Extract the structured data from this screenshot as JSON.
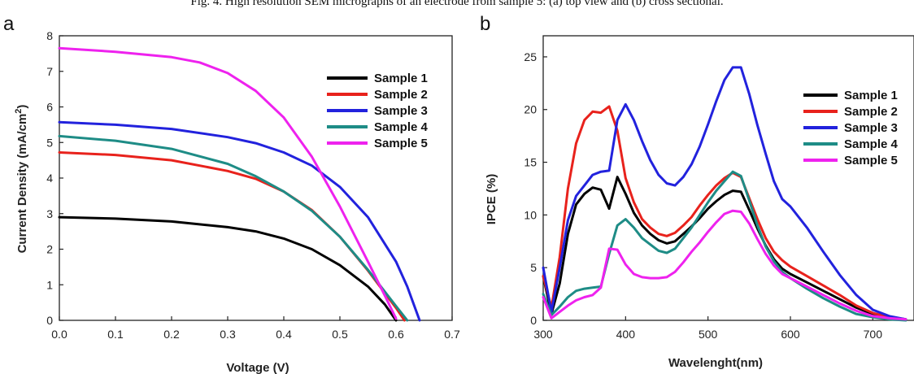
{
  "figure": {
    "caption": "Fig. 4. High resolution SEM micrographs of an electrode from sample 5: (a) top view and (b) cross sectional.",
    "colors": {
      "sample1": "#000000",
      "sample2": "#e8221c",
      "sample3": "#2222dd",
      "sample4": "#1e8c86",
      "sample5": "#ee22ee"
    }
  },
  "chart_data": [
    {
      "panel": "a",
      "type": "line",
      "title": "",
      "xlabel": "Voltage (V)",
      "ylabel": "Current Density (mA/cm²)",
      "ylabel_main": "Current Density (mA/cm",
      "ylabel_sup": "2",
      "ylabel_tail": ")",
      "xlim": [
        0,
        0.7
      ],
      "ylim": [
        0,
        8
      ],
      "xticks": [
        "0.0",
        "0.1",
        "0.2",
        "0.3",
        "0.4",
        "0.5",
        "0.6",
        "0.7"
      ],
      "yticks": [
        "0",
        "1",
        "2",
        "3",
        "4",
        "5",
        "6",
        "7",
        "8"
      ],
      "legend_position": "top-right",
      "grid": false,
      "series": [
        {
          "name": "Sample 1",
          "color": "#000000",
          "x": [
            0,
            0.1,
            0.2,
            0.3,
            0.35,
            0.4,
            0.45,
            0.5,
            0.55,
            0.58,
            0.6
          ],
          "y": [
            2.9,
            2.86,
            2.78,
            2.62,
            2.5,
            2.3,
            2.0,
            1.55,
            0.95,
            0.45,
            0.0
          ]
        },
        {
          "name": "Sample 2",
          "color": "#e8221c",
          "x": [
            0,
            0.1,
            0.2,
            0.3,
            0.35,
            0.4,
            0.45,
            0.5,
            0.55,
            0.6,
            0.615
          ],
          "y": [
            4.72,
            4.65,
            4.5,
            4.2,
            3.98,
            3.62,
            3.1,
            2.35,
            1.4,
            0.35,
            0.0
          ]
        },
        {
          "name": "Sample 3",
          "color": "#2222dd",
          "x": [
            0,
            0.1,
            0.2,
            0.3,
            0.35,
            0.4,
            0.45,
            0.5,
            0.55,
            0.6,
            0.62,
            0.642
          ],
          "y": [
            5.57,
            5.5,
            5.38,
            5.15,
            4.98,
            4.72,
            4.35,
            3.75,
            2.9,
            1.65,
            0.95,
            0.0
          ]
        },
        {
          "name": "Sample 4",
          "color": "#1e8c86",
          "x": [
            0,
            0.1,
            0.2,
            0.3,
            0.35,
            0.4,
            0.45,
            0.5,
            0.55,
            0.6,
            0.62
          ],
          "y": [
            5.18,
            5.05,
            4.82,
            4.4,
            4.05,
            3.62,
            3.08,
            2.35,
            1.42,
            0.4,
            0.0
          ]
        },
        {
          "name": "Sample 5",
          "color": "#ee22ee",
          "x": [
            0,
            0.1,
            0.2,
            0.25,
            0.3,
            0.35,
            0.4,
            0.45,
            0.5,
            0.55,
            0.58,
            0.6
          ],
          "y": [
            7.65,
            7.55,
            7.4,
            7.25,
            6.95,
            6.45,
            5.7,
            4.6,
            3.2,
            1.65,
            0.7,
            0.05
          ]
        }
      ]
    },
    {
      "panel": "b",
      "type": "line",
      "title": "",
      "xlabel": "Wavelenght(nm)",
      "ylabel": "IPCE (%)",
      "xlim": [
        300,
        750
      ],
      "ylim": [
        0,
        27
      ],
      "xticks": [
        "300",
        "400",
        "500",
        "600",
        "700"
      ],
      "yticks": [
        "0",
        "5",
        "10",
        "15",
        "20",
        "25"
      ],
      "legend_position": "right",
      "grid": false,
      "series": [
        {
          "name": "Sample 1",
          "color": "#000000",
          "x": [
            300,
            310,
            320,
            330,
            340,
            350,
            360,
            370,
            380,
            390,
            400,
            410,
            420,
            430,
            440,
            450,
            460,
            470,
            480,
            490,
            500,
            510,
            520,
            530,
            540,
            550,
            560,
            570,
            580,
            590,
            600,
            620,
            640,
            660,
            680,
            700,
            720,
            740
          ],
          "y": [
            4.2,
            0.6,
            3.5,
            8.2,
            11.0,
            12.0,
            12.6,
            12.4,
            10.6,
            13.6,
            12.0,
            10.2,
            9.0,
            8.2,
            7.6,
            7.3,
            7.5,
            8.2,
            8.9,
            9.7,
            10.6,
            11.3,
            11.9,
            12.3,
            12.2,
            10.5,
            8.7,
            7.1,
            5.8,
            4.9,
            4.4,
            3.6,
            2.8,
            2.0,
            1.2,
            0.6,
            0.3,
            0.1
          ]
        },
        {
          "name": "Sample 2",
          "color": "#e8221c",
          "x": [
            300,
            310,
            320,
            330,
            340,
            350,
            360,
            370,
            380,
            390,
            400,
            410,
            420,
            430,
            440,
            450,
            460,
            470,
            480,
            490,
            500,
            510,
            520,
            530,
            540,
            550,
            560,
            570,
            580,
            590,
            600,
            620,
            640,
            660,
            680,
            700,
            720,
            740
          ],
          "y": [
            4.2,
            1.2,
            6.0,
            12.5,
            16.8,
            19.0,
            19.8,
            19.7,
            20.3,
            18.0,
            13.5,
            11.2,
            9.6,
            8.8,
            8.2,
            8.0,
            8.3,
            9.0,
            9.8,
            10.9,
            11.9,
            12.8,
            13.5,
            14.0,
            13.6,
            11.6,
            9.6,
            7.8,
            6.5,
            5.7,
            5.1,
            4.2,
            3.3,
            2.4,
            1.4,
            0.7,
            0.3,
            0.1
          ]
        },
        {
          "name": "Sample 3",
          "color": "#2222dd",
          "x": [
            300,
            310,
            320,
            330,
            340,
            350,
            360,
            370,
            380,
            390,
            400,
            410,
            420,
            430,
            440,
            450,
            460,
            470,
            480,
            490,
            500,
            510,
            520,
            530,
            540,
            550,
            560,
            570,
            580,
            590,
            600,
            620,
            640,
            660,
            680,
            700,
            720,
            740
          ],
          "y": [
            5.0,
            0.8,
            5.0,
            9.5,
            11.8,
            12.8,
            13.8,
            14.1,
            14.2,
            19.0,
            20.5,
            19.0,
            17.0,
            15.2,
            13.8,
            13.0,
            12.8,
            13.6,
            14.8,
            16.5,
            18.6,
            20.8,
            22.8,
            24.0,
            24.0,
            21.5,
            18.5,
            15.8,
            13.2,
            11.5,
            10.8,
            8.8,
            6.5,
            4.3,
            2.4,
            1.0,
            0.4,
            0.1
          ]
        },
        {
          "name": "Sample 4",
          "color": "#1e8c86",
          "x": [
            300,
            310,
            320,
            330,
            340,
            350,
            360,
            370,
            380,
            390,
            400,
            410,
            420,
            430,
            440,
            450,
            460,
            470,
            480,
            490,
            500,
            510,
            520,
            530,
            540,
            550,
            560,
            570,
            580,
            590,
            600,
            620,
            640,
            660,
            680,
            700,
            720,
            740
          ],
          "y": [
            2.5,
            0.5,
            1.3,
            2.2,
            2.8,
            3.0,
            3.1,
            3.2,
            6.3,
            9.0,
            9.6,
            8.8,
            7.8,
            7.2,
            6.6,
            6.4,
            6.8,
            7.8,
            8.8,
            10.0,
            11.2,
            12.3,
            13.2,
            14.1,
            13.7,
            11.4,
            9.0,
            7.0,
            5.6,
            4.6,
            4.0,
            3.0,
            2.1,
            1.3,
            0.6,
            0.3,
            0.1,
            0.0
          ]
        },
        {
          "name": "Sample 5",
          "color": "#ee22ee",
          "x": [
            300,
            310,
            320,
            330,
            340,
            350,
            360,
            370,
            380,
            390,
            400,
            410,
            420,
            430,
            440,
            450,
            460,
            470,
            480,
            490,
            500,
            510,
            520,
            530,
            540,
            550,
            560,
            570,
            580,
            590,
            600,
            620,
            640,
            660,
            680,
            700,
            720,
            740
          ],
          "y": [
            2.2,
            0.2,
            0.8,
            1.4,
            1.9,
            2.2,
            2.4,
            3.1,
            6.8,
            6.7,
            5.3,
            4.4,
            4.1,
            4.0,
            4.0,
            4.1,
            4.6,
            5.5,
            6.5,
            7.4,
            8.4,
            9.3,
            10.1,
            10.4,
            10.3,
            9.2,
            7.7,
            6.3,
            5.2,
            4.4,
            4.0,
            3.2,
            2.4,
            1.6,
            0.9,
            0.4,
            0.2,
            0.1
          ]
        }
      ]
    }
  ]
}
